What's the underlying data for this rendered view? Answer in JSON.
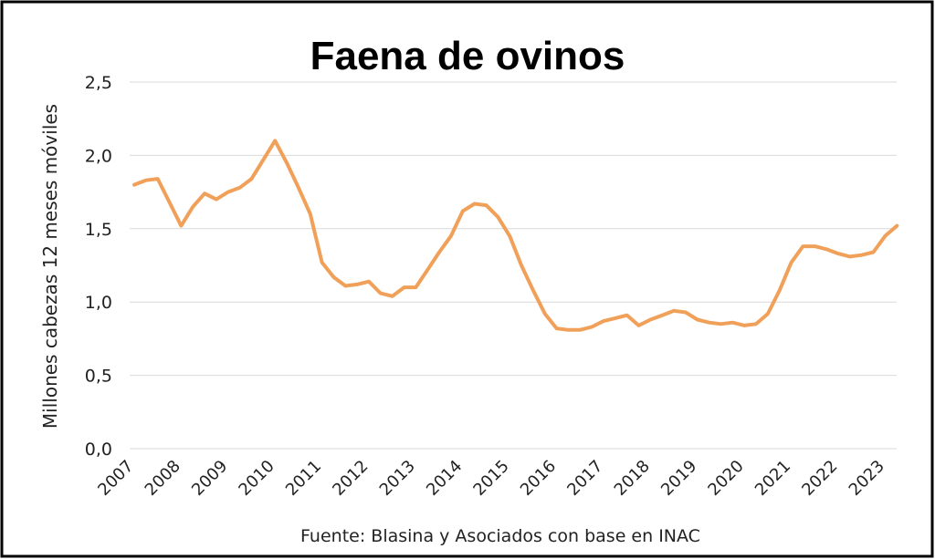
{
  "chart_data": {
    "type": "line",
    "title": "Faena de ovinos",
    "y_label": "Millones cabezas 12 meses móviles",
    "note": "Fuente: Blasina y Asociados con base en INAC",
    "categories": [
      "2007",
      null,
      null,
      null,
      "2008",
      null,
      null,
      null,
      "2009",
      null,
      null,
      null,
      "2010",
      null,
      null,
      null,
      "2011",
      null,
      null,
      null,
      "2012",
      null,
      null,
      null,
      "2013",
      null,
      null,
      null,
      "2014",
      null,
      null,
      null,
      "2015",
      null,
      null,
      null,
      "2016",
      null,
      null,
      null,
      "2017",
      null,
      null,
      null,
      "2018",
      null,
      null,
      null,
      "2019",
      null,
      null,
      null,
      "2020",
      null,
      null,
      null,
      "2021",
      null,
      null,
      null,
      "2022",
      null,
      null,
      null,
      "2023",
      null
    ],
    "series": [
      {
        "name": "Faena de ovinos",
        "color": "#f0a058",
        "values": [
          1.8,
          1.83,
          1.84,
          1.68,
          1.52,
          1.65,
          1.74,
          1.7,
          1.75,
          1.78,
          1.84,
          1.97,
          2.1,
          1.95,
          1.78,
          1.6,
          1.27,
          1.17,
          1.11,
          1.12,
          1.14,
          1.06,
          1.04,
          1.1,
          1.1,
          1.22,
          1.34,
          1.45,
          1.62,
          1.67,
          1.66,
          1.58,
          1.45,
          1.25,
          1.08,
          0.92,
          0.82,
          0.81,
          0.81,
          0.83,
          0.87,
          0.89,
          0.91,
          0.84,
          0.88,
          0.91,
          0.94,
          0.93,
          0.88,
          0.86,
          0.85,
          0.86,
          0.84,
          0.85,
          0.92,
          1.08,
          1.27,
          1.38,
          1.38,
          1.36,
          1.33,
          1.31,
          1.32,
          1.34,
          1.45,
          1.52
        ]
      }
    ],
    "ylim": [
      0,
      2.5
    ],
    "yticks": [
      {
        "value": 0,
        "label": "0,0"
      },
      {
        "value": 0.5,
        "label": "0,5"
      },
      {
        "value": 1,
        "label": "1,0"
      },
      {
        "value": 1.5,
        "label": "1,5"
      },
      {
        "value": 2,
        "label": "2,0"
      },
      {
        "value": 2.5,
        "label": "2,5"
      }
    ],
    "grid": true
  }
}
